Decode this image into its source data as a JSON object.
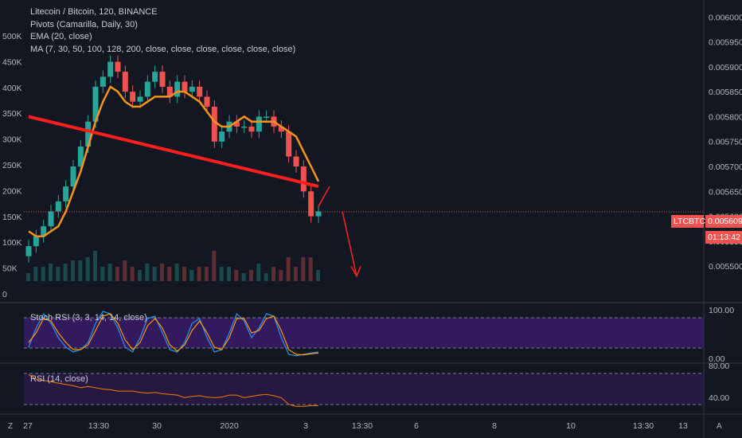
{
  "legend": {
    "symbol_line": "Litecoin / Bitcoin, 120, BINANCE",
    "pivots_line": "Pivots (Camarilla, Daily, 30)",
    "ema_line": "EMA (20, close)",
    "ma_line": "MA (7, 30, 50, 100, 128, 200, close, close, close, close, close, close)"
  },
  "indicators": {
    "stoch_label": "Stoch RSI (3, 3, 14, 14, close)",
    "rsi_label": "RSI (14, close)"
  },
  "price_tags": {
    "symbol": "LTCBTC",
    "last_price": "0.005609",
    "countdown": "01:13:42"
  },
  "colors": {
    "background": "#131722",
    "up": "#26a69a",
    "down": "#ef5350",
    "ema": "#f7931a",
    "trendline": "#ff1e1e",
    "pivot_line": "#f5c6e4",
    "pivot_text": "#f08a3c",
    "stoch_band": "#3c1c6e",
    "rsi_band": "#2a1a4a"
  },
  "chart_data": {
    "type": "line",
    "title": "Litecoin / Bitcoin, 120, BINANCE",
    "right_axis": {
      "ticks": [
        "0.006000",
        "0.005950",
        "0.005900",
        "0.005850",
        "0.005800",
        "0.005750",
        "0.005700",
        "0.005650",
        "0.005600",
        "0.005550",
        "0.005500"
      ],
      "ylim": [
        0.00547,
        0.00601
      ]
    },
    "left_volume_axis": {
      "ticks": [
        "500K",
        "450K",
        "400K",
        "350K",
        "300K",
        "250K",
        "200K",
        "150K",
        "100K",
        "50K",
        "0"
      ]
    },
    "x_axis": {
      "ticks": [
        "27",
        "13:30",
        "30",
        "2020",
        "3",
        "13:30",
        "6",
        "8",
        "10",
        "13:30",
        "13"
      ]
    },
    "last_price": 0.005609,
    "candles_close": [
      0.00554,
      0.00556,
      0.00558,
      0.00561,
      0.00563,
      0.00566,
      0.0057,
      0.00574,
      0.00579,
      0.00586,
      0.00588,
      0.00591,
      0.00589,
      0.00585,
      0.00583,
      0.00584,
      0.00587,
      0.00589,
      0.00586,
      0.00584,
      0.00587,
      0.00585,
      0.00586,
      0.00584,
      0.00582,
      0.00575,
      0.00577,
      0.00579,
      0.00578,
      0.00578,
      0.00577,
      0.0058,
      0.0058,
      0.00578,
      0.00577,
      0.00572,
      0.0057,
      0.00565,
      0.0056,
      0.00561
    ],
    "ema_20": [
      0.00557,
      0.00556,
      0.00556,
      0.00557,
      0.00558,
      0.00561,
      0.00565,
      0.00569,
      0.00574,
      0.00579,
      0.00583,
      0.00586,
      0.00585,
      0.00583,
      0.00582,
      0.00582,
      0.00583,
      0.00584,
      0.00584,
      0.00584,
      0.00585,
      0.00585,
      0.00584,
      0.00583,
      0.00581,
      0.00579,
      0.00578,
      0.00578,
      0.00579,
      0.0058,
      0.00579,
      0.00579,
      0.00579,
      0.00579,
      0.00578,
      0.00577,
      0.00576,
      0.00573,
      0.0057,
      0.00567
    ],
    "trendline": [
      [
        0,
        0.0058
      ],
      [
        39,
        0.00566
      ]
    ],
    "stoch_rsi": {
      "ylim": [
        0,
        100
      ],
      "ticks": [
        "100.00",
        "0.00"
      ],
      "k": [
        20,
        60,
        90,
        70,
        40,
        20,
        10,
        15,
        30,
        70,
        95,
        90,
        60,
        20,
        10,
        40,
        80,
        85,
        50,
        15,
        10,
        30,
        70,
        80,
        40,
        10,
        15,
        50,
        90,
        75,
        40,
        60,
        90,
        85,
        40,
        5,
        2,
        5,
        8,
        10
      ],
      "d": [
        30,
        50,
        80,
        75,
        50,
        30,
        15,
        15,
        25,
        55,
        85,
        90,
        70,
        35,
        15,
        30,
        65,
        80,
        60,
        25,
        12,
        25,
        55,
        75,
        50,
        20,
        15,
        40,
        80,
        80,
        50,
        55,
        80,
        85,
        55,
        15,
        5,
        4,
        6,
        8
      ]
    },
    "rsi": {
      "ylim": [
        20,
        85
      ],
      "ticks": [
        "80.00",
        "40.00"
      ],
      "values": [
        75,
        68,
        66,
        64,
        62,
        60,
        58,
        55,
        57,
        55,
        53,
        52,
        50,
        50,
        50,
        48,
        47,
        48,
        46,
        45,
        44,
        40,
        42,
        43,
        41,
        40,
        41,
        44,
        44,
        40,
        42,
        44,
        45,
        43,
        40,
        30,
        27,
        27,
        28,
        28
      ]
    }
  }
}
